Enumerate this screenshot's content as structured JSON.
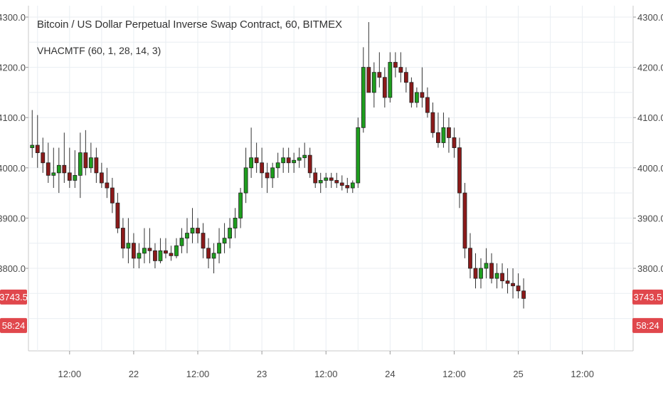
{
  "header": {
    "title": "Bitcoin / US Dollar Perpetual Inverse Swap Contract, 60, BITMEX",
    "indicator": "VHACMTF (60, 1, 28, 14, 3)"
  },
  "colors": {
    "up": "#5db47a",
    "down": "#e0474c",
    "up_body": "#1e9e1e",
    "down_body": "#8b1a1a",
    "badge": "#e0474c",
    "grid": "#e9eef2",
    "axis_text": "#4a4a4a"
  },
  "price_badge": {
    "label": "3743.5",
    "value": 3743.5
  },
  "timer_badge": {
    "label": "58:24"
  },
  "chart_data": {
    "type": "candlestick",
    "title": "Bitcoin / US Dollar Perpetual Inverse Swap Contract, 60, BITMEX",
    "ylim": [
      3700,
      4315
    ],
    "y_ticks": [
      {
        "label": "4300.0",
        "value": 4300
      },
      {
        "label": "4200.0",
        "value": 4200
      },
      {
        "label": "4100.0",
        "value": 4100
      },
      {
        "label": "4000.0",
        "value": 4000
      },
      {
        "label": "3900.0",
        "value": 3900
      },
      {
        "label": "3800.0",
        "value": 3800
      }
    ],
    "x_ticks": [
      {
        "label": "12:00",
        "value": 7
      },
      {
        "label": "22",
        "value": 19
      },
      {
        "label": "12:00",
        "value": 31
      },
      {
        "label": "23",
        "value": 43
      },
      {
        "label": "12:00",
        "value": 55
      },
      {
        "label": "24",
        "value": 67
      },
      {
        "label": "12:00",
        "value": 79
      },
      {
        "label": "25",
        "value": 91
      },
      {
        "label": "12:00",
        "value": 103
      }
    ],
    "xlim": [
      -0.7,
      112.5
    ],
    "grid": true,
    "candles": [
      [
        4040,
        4115,
        4020,
        4045
      ],
      [
        4045,
        4105,
        4000,
        4030
      ],
      [
        4030,
        4060,
        3990,
        4010
      ],
      [
        4010,
        4050,
        3970,
        3985
      ],
      [
        3985,
        4040,
        3960,
        3990
      ],
      [
        3990,
        4040,
        3950,
        4005
      ],
      [
        4005,
        4070,
        3970,
        3990
      ],
      [
        3990,
        4040,
        3960,
        3975
      ],
      [
        3975,
        4035,
        3960,
        3985
      ],
      [
        3985,
        4070,
        3940,
        4030
      ],
      [
        4030,
        4075,
        3985,
        4000
      ],
      [
        4000,
        4050,
        3990,
        4020
      ],
      [
        4020,
        4040,
        3970,
        3990
      ],
      [
        3990,
        4010,
        3960,
        3970
      ],
      [
        3970,
        4000,
        3940,
        3960
      ],
      [
        3960,
        3980,
        3910,
        3930
      ],
      [
        3930,
        3950,
        3870,
        3880
      ],
      [
        3880,
        3900,
        3820,
        3840
      ],
      [
        3840,
        3900,
        3810,
        3850
      ],
      [
        3850,
        3870,
        3800,
        3820
      ],
      [
        3820,
        3850,
        3800,
        3830
      ],
      [
        3830,
        3880,
        3810,
        3840
      ],
      [
        3840,
        3880,
        3810,
        3835
      ],
      [
        3835,
        3850,
        3800,
        3815
      ],
      [
        3815,
        3860,
        3810,
        3835
      ],
      [
        3835,
        3860,
        3820,
        3830
      ],
      [
        3830,
        3845,
        3815,
        3825
      ],
      [
        3825,
        3860,
        3820,
        3845
      ],
      [
        3845,
        3880,
        3830,
        3860
      ],
      [
        3860,
        3900,
        3830,
        3870
      ],
      [
        3870,
        3920,
        3850,
        3880
      ],
      [
        3880,
        3900,
        3850,
        3870
      ],
      [
        3870,
        3890,
        3820,
        3840
      ],
      [
        3840,
        3860,
        3800,
        3820
      ],
      [
        3820,
        3850,
        3790,
        3830
      ],
      [
        3830,
        3880,
        3810,
        3850
      ],
      [
        3850,
        3890,
        3830,
        3860
      ],
      [
        3860,
        3900,
        3840,
        3880
      ],
      [
        3880,
        3920,
        3860,
        3900
      ],
      [
        3900,
        3960,
        3880,
        3950
      ],
      [
        3950,
        4040,
        3930,
        4000
      ],
      [
        4000,
        4080,
        3980,
        4020
      ],
      [
        4020,
        4050,
        3990,
        4010
      ],
      [
        4010,
        4040,
        3960,
        3990
      ],
      [
        3990,
        4010,
        3950,
        3980
      ],
      [
        3980,
        4010,
        3960,
        4000
      ],
      [
        4000,
        4030,
        3980,
        4010
      ],
      [
        4010,
        4040,
        3990,
        4020
      ],
      [
        4020,
        4040,
        3990,
        4010
      ],
      [
        4010,
        4030,
        3990,
        4015
      ],
      [
        4015,
        4040,
        4000,
        4020
      ],
      [
        4020,
        4050,
        4000,
        4025
      ],
      [
        4025,
        4040,
        3980,
        3990
      ],
      [
        3990,
        4000,
        3960,
        3970
      ],
      [
        3970,
        3990,
        3950,
        3975
      ],
      [
        3975,
        3990,
        3960,
        3980
      ],
      [
        3980,
        3990,
        3960,
        3975
      ],
      [
        3975,
        3990,
        3960,
        3970
      ],
      [
        3970,
        3985,
        3955,
        3965
      ],
      [
        3965,
        3980,
        3950,
        3960
      ],
      [
        3960,
        3975,
        3950,
        3970
      ],
      [
        3970,
        4100,
        3960,
        4080
      ],
      [
        4080,
        4240,
        4070,
        4200
      ],
      [
        4200,
        4290,
        4150,
        4150
      ],
      [
        4150,
        4210,
        4120,
        4190
      ],
      [
        4190,
        4230,
        4160,
        4180
      ],
      [
        4180,
        4200,
        4120,
        4140
      ],
      [
        4140,
        4230,
        4130,
        4210
      ],
      [
        4210,
        4230,
        4180,
        4200
      ],
      [
        4200,
        4230,
        4170,
        4190
      ],
      [
        4190,
        4200,
        4150,
        4170
      ],
      [
        4170,
        4180,
        4120,
        4130
      ],
      [
        4130,
        4160,
        4120,
        4150
      ],
      [
        4150,
        4200,
        4120,
        4140
      ],
      [
        4140,
        4160,
        4100,
        4110
      ],
      [
        4110,
        4130,
        4060,
        4070
      ],
      [
        4070,
        4110,
        4040,
        4050
      ],
      [
        4050,
        4110,
        4040,
        4080
      ],
      [
        4080,
        4100,
        4030,
        4060
      ],
      [
        4060,
        4080,
        4020,
        4040
      ],
      [
        4040,
        4060,
        3920,
        3950
      ],
      [
        3950,
        3970,
        3820,
        3840
      ],
      [
        3840,
        3870,
        3780,
        3800
      ],
      [
        3800,
        3830,
        3760,
        3780
      ],
      [
        3780,
        3820,
        3760,
        3800
      ],
      [
        3800,
        3840,
        3780,
        3810
      ],
      [
        3810,
        3830,
        3770,
        3780
      ],
      [
        3780,
        3810,
        3760,
        3790
      ],
      [
        3790,
        3810,
        3760,
        3775
      ],
      [
        3775,
        3800,
        3750,
        3770
      ],
      [
        3770,
        3800,
        3740,
        3765
      ],
      [
        3765,
        3790,
        3740,
        3755
      ],
      [
        3755,
        3780,
        3720,
        3740
      ]
    ]
  }
}
